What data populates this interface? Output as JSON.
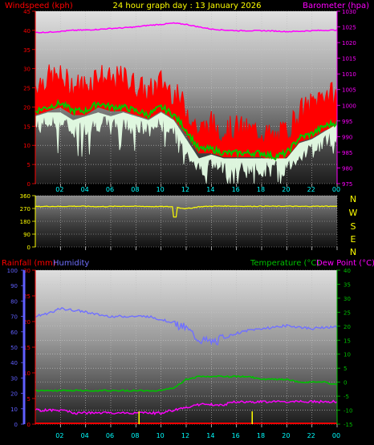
{
  "header": {
    "left_title": "Windspeed (kph)",
    "center_title": "24 hour graph day : 13 January 2026",
    "right_title": "Barometer (hpa)"
  },
  "colors": {
    "wind_gust": "#ff0000",
    "wind_avg": "#00c800",
    "wind_speed": "#e6ffe6",
    "barometer": "#ff00ff",
    "direction": "#ffff00",
    "humidity": "#7070ff",
    "temperature": "#00c000",
    "dewpoint": "#ff00ff",
    "rainfall": "#ff0000",
    "axis_left": "#ff0000",
    "axis_right": "#ff00ff",
    "axis_hum": "#6060ff",
    "axis_temp": "#00c000",
    "x_labels": "#00ffff",
    "compass": "#ffff00"
  },
  "chart_data": [
    {
      "type": "line",
      "title": "24 hour graph day : 13 January 2026",
      "xlabel": "",
      "x_tick_labels": [
        "02",
        "04",
        "06",
        "08",
        "10",
        "12",
        "14",
        "16",
        "18",
        "20",
        "22",
        "00"
      ],
      "y_left_label": "Windspeed (kph)",
      "y_left_ticks": [
        0,
        5,
        10,
        15,
        20,
        25,
        30,
        35,
        40,
        45
      ],
      "y_left_lim": [
        0,
        45
      ],
      "y_right_label": "Barometer (hpa)",
      "y_right_ticks": [
        975,
        980,
        985,
        990,
        995,
        1000,
        1005,
        1010,
        1015,
        1020,
        1025,
        1030
      ],
      "y_right_lim": [
        975,
        1030
      ],
      "x": [
        0,
        1,
        2,
        3,
        4,
        5,
        6,
        7,
        8,
        9,
        10,
        11,
        12,
        13,
        14,
        15,
        16,
        17,
        18,
        19,
        20,
        21,
        22,
        23,
        24
      ],
      "series": [
        {
          "name": "gust",
          "axis": "left",
          "values": [
            25,
            27,
            27,
            25,
            25,
            28,
            26,
            27,
            25,
            23,
            26,
            23,
            19,
            13,
            15,
            13,
            14,
            13,
            13,
            11,
            13,
            18,
            20,
            23,
            22
          ]
        },
        {
          "name": "average",
          "axis": "left",
          "values": [
            19,
            20,
            21,
            19,
            19,
            21,
            20,
            20,
            19,
            18,
            20,
            18,
            14,
            9,
            9,
            8,
            8,
            8,
            8,
            7,
            8,
            12,
            13,
            15,
            16
          ]
        },
        {
          "name": "speed",
          "axis": "left",
          "values": [
            15,
            16,
            16,
            14,
            15,
            16,
            15,
            16,
            15,
            14,
            16,
            14,
            9,
            4,
            5,
            4,
            4,
            4,
            4,
            4,
            4,
            8,
            9,
            11,
            13
          ]
        },
        {
          "name": "barometer",
          "axis": "right",
          "values": [
            1023.2,
            1023.3,
            1023.6,
            1023.9,
            1024.0,
            1024.2,
            1024.5,
            1024.7,
            1025.0,
            1025.5,
            1025.8,
            1026.2,
            1025.8,
            1025.0,
            1024.3,
            1024.0,
            1023.8,
            1023.8,
            1023.8,
            1023.7,
            1023.5,
            1023.6,
            1023.8,
            1023.9,
            1024.0
          ]
        }
      ]
    },
    {
      "type": "line",
      "title": "",
      "y_ticks": [
        0,
        90,
        180,
        270,
        360
      ],
      "y_lim": [
        0,
        360
      ],
      "compass": [
        "N",
        "W",
        "S",
        "E",
        "N"
      ],
      "x": [
        0,
        1,
        2,
        3,
        4,
        5,
        6,
        7,
        8,
        9,
        10,
        11,
        12,
        13,
        14,
        15,
        16,
        17,
        18,
        19,
        20,
        21,
        22,
        23,
        24
      ],
      "series": [
        {
          "name": "direction",
          "values": [
            283,
            285,
            284,
            286,
            285,
            283,
            284,
            286,
            285,
            284,
            283,
            282,
            268,
            282,
            286,
            287,
            286,
            285,
            286,
            285,
            286,
            284,
            285,
            286,
            285
          ]
        }
      ]
    },
    {
      "type": "line",
      "title": "",
      "x_tick_labels": [
        "02",
        "04",
        "06",
        "08",
        "10",
        "12",
        "14",
        "16",
        "18",
        "20",
        "22",
        "00"
      ],
      "legend": [
        "Rainfall (mm)",
        "Humidity",
        "Temperature (°C)",
        "Dew Point (°C)"
      ],
      "y_rain_ticks": [
        0,
        5,
        10,
        15,
        20,
        25,
        30
      ],
      "y_rain_lim": [
        0,
        30
      ],
      "y_hum_ticks": [
        0,
        10,
        20,
        30,
        40,
        50,
        60,
        70,
        80,
        90,
        100
      ],
      "y_hum_lim": [
        0,
        100
      ],
      "y_temp_ticks": [
        -15,
        -10,
        -5,
        0,
        5,
        10,
        15,
        20,
        25,
        30,
        35,
        40
      ],
      "y_temp_lim": [
        -15,
        40
      ],
      "x": [
        0,
        1,
        2,
        3,
        4,
        5,
        6,
        7,
        8,
        9,
        10,
        11,
        12,
        13,
        14,
        15,
        16,
        17,
        18,
        19,
        20,
        21,
        22,
        23,
        24
      ],
      "series": [
        {
          "name": "Humidity",
          "axis": "hum",
          "values": [
            70,
            72,
            75,
            74,
            73,
            71,
            70,
            70,
            70,
            70,
            68,
            66,
            62,
            55,
            53,
            56,
            59,
            61,
            62,
            63,
            64,
            63,
            62,
            63,
            63
          ]
        },
        {
          "name": "Temperature (°C)",
          "axis": "temp",
          "values": [
            -3,
            -3,
            -3,
            -3,
            -3,
            -3,
            -3,
            -3,
            -3,
            -3,
            -3,
            -2,
            1,
            2,
            2,
            2,
            2,
            2,
            1,
            1,
            1,
            0,
            0,
            0,
            -1
          ]
        },
        {
          "name": "Dew Point (°C)",
          "axis": "temp",
          "values": [
            -10,
            -10,
            -10,
            -11,
            -11,
            -11,
            -11,
            -11,
            -11,
            -11,
            -11,
            -10,
            -9,
            -8,
            -8,
            -8,
            -7,
            -7,
            -7,
            -7,
            -7,
            -7,
            -7,
            -7,
            -7
          ]
        },
        {
          "name": "Rainfall (mm)",
          "axis": "rain",
          "values": [
            0,
            0,
            0,
            0,
            0,
            0,
            0,
            0,
            0,
            0,
            0,
            0,
            0,
            0,
            0,
            0,
            0,
            0,
            0,
            0,
            0,
            0,
            0,
            0,
            0
          ]
        }
      ],
      "marker_hours": [
        8,
        17
      ]
    }
  ]
}
